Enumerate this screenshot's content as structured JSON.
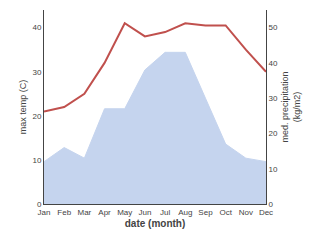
{
  "chart_data": {
    "type": "line",
    "xlabel": "date (month)",
    "ylabel": "max temp (C)",
    "y2label": "med. precipitation\n(kg/m2)",
    "categories": [
      "Jan",
      "Feb",
      "Mar",
      "Apr",
      "May",
      "Jun",
      "Jul",
      "Aug",
      "Sep",
      "Oct",
      "Nov",
      "Dec"
    ],
    "series": [
      {
        "type": "area",
        "axis": "y2",
        "color": "#c5d4ee",
        "values": [
          12,
          16,
          13,
          27,
          27,
          38,
          43,
          43,
          30,
          17,
          13,
          12
        ]
      },
      {
        "type": "line",
        "color": "#c0504d",
        "values": [
          21,
          22,
          25,
          32,
          41,
          38,
          39,
          41,
          40.5,
          40.5,
          35,
          30
        ]
      }
    ],
    "ylim": [
      0,
      44
    ],
    "yticks": [
      0,
      10,
      20,
      30,
      40
    ],
    "y2lim": [
      0,
      55
    ],
    "y2ticks": [
      0,
      10,
      20,
      30,
      40,
      50
    ],
    "grid": false
  }
}
